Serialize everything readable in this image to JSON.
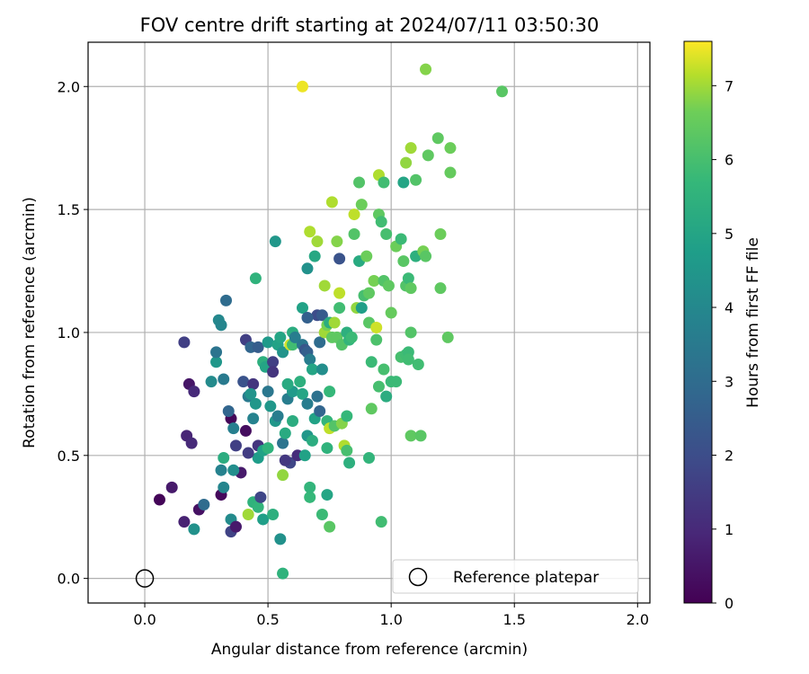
{
  "chart_data": {
    "type": "scatter",
    "title": "FOV centre drift starting at 2024/07/11 03:50:30",
    "xlabel": "Angular distance from reference (arcmin)",
    "ylabel": "Rotation from reference (arcmin)",
    "xlim": [
      -0.23,
      2.05
    ],
    "ylim": [
      -0.1,
      2.18
    ],
    "xticks": [
      0.0,
      0.5,
      1.0,
      1.5,
      2.0
    ],
    "xtick_labels": [
      "0.0",
      "0.5",
      "1.0",
      "1.5",
      "2.0"
    ],
    "yticks": [
      0.0,
      0.5,
      1.0,
      1.5,
      2.0
    ],
    "ytick_labels": [
      "0.0",
      "0.5",
      "1.0",
      "1.5",
      "2.0"
    ],
    "grid": true,
    "colormap": "viridis",
    "colorbar": {
      "label": "Hours from first FF file",
      "min": 0,
      "max": 7.6,
      "ticks": [
        0,
        1,
        2,
        3,
        4,
        5,
        6,
        7
      ],
      "tick_labels": [
        "0",
        "1",
        "2",
        "3",
        "4",
        "5",
        "6",
        "7"
      ]
    },
    "legend": {
      "position": "lower-right",
      "label": "Reference platepar"
    },
    "reference_point": {
      "x": 0.0,
      "y": 0.0
    },
    "points": [
      [
        0.06,
        0.32,
        0.1
      ],
      [
        0.11,
        0.37,
        0.6
      ],
      [
        0.16,
        0.23,
        0.8
      ],
      [
        0.17,
        0.58,
        0.9
      ],
      [
        0.19,
        0.55,
        1.0
      ],
      [
        0.18,
        0.79,
        0.5
      ],
      [
        0.2,
        0.76,
        1.0
      ],
      [
        0.16,
        0.96,
        1.6
      ],
      [
        0.22,
        0.28,
        0.4
      ],
      [
        0.24,
        0.3,
        3.0
      ],
      [
        0.2,
        0.2,
        4.3
      ],
      [
        0.31,
        0.34,
        0.2
      ],
      [
        0.35,
        0.19,
        1.7
      ],
      [
        0.35,
        0.24,
        4.1
      ],
      [
        0.37,
        0.21,
        0.6
      ],
      [
        0.39,
        0.43,
        0.6
      ],
      [
        0.35,
        0.65,
        0.1
      ],
      [
        0.37,
        0.54,
        1.6
      ],
      [
        0.41,
        0.6,
        0.3
      ],
      [
        0.42,
        0.26,
        7.0
      ],
      [
        0.44,
        0.31,
        5.5
      ],
      [
        0.46,
        0.29,
        5.6
      ],
      [
        0.48,
        0.24,
        4.8
      ],
      [
        0.52,
        0.26,
        5.4
      ],
      [
        0.55,
        0.16,
        4.3
      ],
      [
        0.56,
        0.02,
        5.5
      ],
      [
        0.56,
        0.42,
        6.9
      ],
      [
        0.59,
        0.47,
        1.8
      ],
      [
        0.57,
        0.48,
        1.4
      ],
      [
        0.62,
        0.5,
        1.1
      ],
      [
        0.31,
        0.44,
        3.8
      ],
      [
        0.32,
        0.37,
        3.9
      ],
      [
        0.32,
        0.49,
        5.3
      ],
      [
        0.36,
        0.44,
        4.2
      ],
      [
        0.34,
        0.68,
        2.8
      ],
      [
        0.36,
        0.61,
        3.7
      ],
      [
        0.4,
        0.8,
        2.2
      ],
      [
        0.42,
        0.74,
        3.5
      ],
      [
        0.44,
        0.65,
        3.8
      ],
      [
        0.45,
        0.71,
        4.5
      ],
      [
        0.46,
        0.49,
        4.7
      ],
      [
        0.46,
        0.54,
        1.3
      ],
      [
        0.48,
        0.52,
        4.9
      ],
      [
        0.5,
        0.76,
        3.4
      ],
      [
        0.51,
        0.7,
        4.5
      ],
      [
        0.53,
        0.64,
        4.5
      ],
      [
        0.54,
        0.66,
        3.6
      ],
      [
        0.56,
        0.55,
        3.3
      ],
      [
        0.57,
        0.59,
        5.2
      ],
      [
        0.58,
        0.73,
        3.6
      ],
      [
        0.6,
        0.64,
        5.3
      ],
      [
        0.6,
        0.76,
        4.6
      ],
      [
        0.64,
        0.75,
        5.0
      ],
      [
        0.66,
        0.58,
        4.5
      ],
      [
        0.66,
        0.71,
        3.6
      ],
      [
        0.68,
        0.56,
        5.3
      ],
      [
        0.69,
        0.65,
        4.9
      ],
      [
        0.7,
        0.74,
        3.2
      ],
      [
        0.71,
        0.68,
        2.8
      ],
      [
        0.74,
        0.64,
        5.6
      ],
      [
        0.74,
        0.53,
        5.5
      ],
      [
        0.75,
        0.61,
        7.2
      ],
      [
        0.77,
        0.62,
        6.2
      ],
      [
        0.8,
        0.63,
        6.8
      ],
      [
        0.81,
        0.54,
        7.1
      ],
      [
        0.82,
        0.66,
        5.7
      ],
      [
        0.82,
        0.52,
        6.0
      ],
      [
        0.83,
        0.47,
        5.4
      ],
      [
        0.74,
        0.34,
        5.0
      ],
      [
        0.72,
        0.26,
        5.8
      ],
      [
        0.75,
        0.21,
        6.3
      ],
      [
        0.67,
        0.33,
        5.7
      ],
      [
        0.67,
        0.37,
        5.6
      ],
      [
        0.65,
        0.5,
        4.9
      ],
      [
        0.91,
        0.49,
        5.6
      ],
      [
        0.92,
        0.69,
        6.4
      ],
      [
        0.95,
        0.78,
        6.0
      ],
      [
        0.97,
        0.85,
        6.0
      ],
      [
        0.98,
        0.74,
        5.3
      ],
      [
        1.0,
        0.8,
        5.8
      ],
      [
        1.02,
        0.8,
        5.8
      ],
      [
        0.96,
        0.23,
        5.9
      ],
      [
        1.08,
        0.58,
        6.4
      ],
      [
        1.12,
        0.58,
        6.3
      ],
      [
        0.27,
        0.8,
        4.1
      ],
      [
        0.29,
        0.88,
        4.5
      ],
      [
        0.29,
        0.92,
        3.3
      ],
      [
        0.3,
        1.05,
        4.0
      ],
      [
        0.31,
        1.03,
        3.9
      ],
      [
        0.33,
        1.13,
        3.0
      ],
      [
        0.32,
        0.81,
        3.5
      ],
      [
        0.41,
        0.97,
        1.6
      ],
      [
        0.43,
        0.94,
        2.8
      ],
      [
        0.46,
        0.94,
        2.5
      ],
      [
        0.44,
        0.79,
        1.3
      ],
      [
        0.48,
        0.88,
        5.4
      ],
      [
        0.49,
        0.86,
        5.0
      ],
      [
        0.5,
        0.96,
        4.6
      ],
      [
        0.52,
        0.88,
        1.6
      ],
      [
        0.52,
        0.84,
        1.3
      ],
      [
        0.54,
        0.95,
        4.9
      ],
      [
        0.55,
        0.98,
        5.0
      ],
      [
        0.56,
        0.92,
        4.4
      ],
      [
        0.59,
        0.95,
        7.3
      ],
      [
        0.6,
        1.0,
        5.3
      ],
      [
        0.6,
        0.95,
        5.9
      ],
      [
        0.61,
        0.98,
        3.6
      ],
      [
        0.63,
        0.8,
        5.4
      ],
      [
        0.64,
        0.95,
        3.4
      ],
      [
        0.65,
        0.93,
        2.3
      ],
      [
        0.66,
        0.92,
        2.6
      ],
      [
        0.67,
        0.89,
        3.6
      ],
      [
        0.68,
        0.85,
        5.0
      ],
      [
        0.7,
        1.07,
        2.0
      ],
      [
        0.71,
        0.96,
        3.0
      ],
      [
        0.72,
        1.07,
        2.4
      ],
      [
        0.73,
        1.0,
        7.0
      ],
      [
        0.74,
        1.03,
        6.7
      ],
      [
        0.75,
        1.04,
        5.3
      ],
      [
        0.76,
        0.98,
        6.4
      ],
      [
        0.77,
        1.04,
        7.0
      ],
      [
        0.78,
        0.98,
        6.4
      ],
      [
        0.79,
        1.1,
        5.9
      ],
      [
        0.8,
        0.95,
        6.2
      ],
      [
        0.82,
        1.0,
        5.4
      ],
      [
        0.83,
        0.97,
        5.6
      ],
      [
        0.84,
        0.98,
        5.8
      ],
      [
        0.86,
        1.1,
        6.9
      ],
      [
        0.88,
        1.1,
        4.8
      ],
      [
        0.89,
        1.15,
        6.0
      ],
      [
        0.91,
        1.04,
        6.3
      ],
      [
        0.92,
        0.88,
        5.8
      ],
      [
        0.94,
        0.97,
        6.1
      ],
      [
        0.94,
        1.02,
        7.3
      ],
      [
        0.64,
        1.1,
        4.9
      ],
      [
        0.66,
        1.26,
        4.3
      ],
      [
        0.66,
        1.06,
        2.6
      ],
      [
        0.69,
        1.31,
        5.1
      ],
      [
        0.73,
        1.19,
        7.0
      ],
      [
        0.79,
        1.16,
        7.2
      ],
      [
        0.79,
        1.3,
        2.2
      ],
      [
        0.85,
        1.4,
        6.2
      ],
      [
        0.87,
        1.29,
        5.2
      ],
      [
        0.9,
        1.31,
        6.6
      ],
      [
        0.91,
        1.16,
        6.4
      ],
      [
        0.93,
        1.21,
        6.7
      ],
      [
        0.95,
        1.48,
        6.4
      ],
      [
        0.96,
        1.45,
        5.9
      ],
      [
        0.97,
        1.21,
        6.2
      ],
      [
        0.98,
        1.4,
        6.0
      ],
      [
        0.99,
        1.19,
        6.4
      ],
      [
        1.0,
        1.08,
        6.5
      ],
      [
        1.02,
        1.35,
        6.6
      ],
      [
        1.04,
        1.38,
        5.8
      ],
      [
        1.05,
        1.29,
        6.3
      ],
      [
        1.06,
        1.19,
        6.2
      ],
      [
        1.07,
        1.22,
        5.8
      ],
      [
        1.08,
        1.18,
        6.4
      ],
      [
        1.08,
        1.0,
        6.2
      ],
      [
        1.1,
        1.31,
        5.4
      ],
      [
        1.13,
        1.33,
        6.7
      ],
      [
        1.14,
        1.31,
        6.3
      ],
      [
        1.04,
        0.9,
        6.0
      ],
      [
        1.06,
        0.91,
        5.9
      ],
      [
        1.07,
        0.92,
        5.8
      ],
      [
        1.07,
        0.89,
        5.9
      ],
      [
        1.11,
        0.87,
        5.9
      ],
      [
        1.23,
        0.98,
        6.4
      ],
      [
        1.2,
        1.18,
        6.4
      ],
      [
        1.2,
        1.4,
        6.6
      ],
      [
        0.67,
        1.41,
        7.1
      ],
      [
        0.7,
        1.37,
        7.0
      ],
      [
        0.76,
        1.53,
        7.1
      ],
      [
        0.78,
        1.37,
        6.8
      ],
      [
        0.85,
        1.48,
        7.2
      ],
      [
        0.88,
        1.52,
        6.6
      ],
      [
        0.87,
        1.61,
        6.2
      ],
      [
        0.95,
        1.64,
        7.1
      ],
      [
        0.97,
        1.61,
        5.9
      ],
      [
        1.05,
        1.61,
        5.0
      ],
      [
        1.06,
        1.69,
        6.9
      ],
      [
        1.08,
        1.75,
        7.0
      ],
      [
        1.1,
        1.62,
        6.2
      ],
      [
        1.15,
        1.72,
        6.4
      ],
      [
        1.19,
        1.79,
        6.4
      ],
      [
        1.24,
        1.75,
        6.6
      ],
      [
        1.24,
        1.65,
        6.5
      ],
      [
        1.14,
        2.07,
        6.8
      ],
      [
        1.45,
        1.98,
        6.3
      ],
      [
        0.64,
        2.0,
        7.5
      ],
      [
        0.45,
        1.22,
        5.5
      ],
      [
        0.53,
        1.37,
        4.5
      ],
      [
        0.42,
        0.51,
        1.5
      ],
      [
        0.47,
        0.33,
        1.8
      ],
      [
        0.5,
        0.53,
        5.5
      ],
      [
        0.58,
        0.79,
        5.2
      ],
      [
        0.72,
        0.85,
        4.2
      ],
      [
        0.75,
        0.76,
        5.7
      ],
      [
        0.43,
        0.75,
        4.4
      ]
    ]
  }
}
